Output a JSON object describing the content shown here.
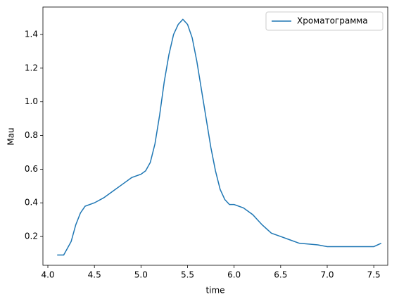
{
  "chart_data": {
    "type": "line",
    "x_label": "time",
    "y_label": "Mau",
    "x": [
      4.1,
      4.17,
      4.2,
      4.25,
      4.3,
      4.35,
      4.4,
      4.5,
      4.6,
      4.7,
      4.8,
      4.9,
      5.0,
      5.05,
      5.1,
      5.15,
      5.2,
      5.25,
      5.3,
      5.35,
      5.4,
      5.45,
      5.5,
      5.55,
      5.6,
      5.65,
      5.7,
      5.75,
      5.8,
      5.85,
      5.9,
      5.95,
      6.0,
      6.1,
      6.2,
      6.3,
      6.4,
      6.5,
      6.6,
      6.7,
      6.9,
      7.0,
      7.5,
      7.58
    ],
    "series": [
      {
        "name": "Хроматограмма",
        "color": "#1f77b4",
        "values": [
          0.09,
          0.09,
          0.12,
          0.17,
          0.27,
          0.34,
          0.38,
          0.4,
          0.43,
          0.47,
          0.51,
          0.55,
          0.57,
          0.59,
          0.64,
          0.75,
          0.92,
          1.12,
          1.28,
          1.4,
          1.46,
          1.49,
          1.46,
          1.38,
          1.24,
          1.07,
          0.9,
          0.73,
          0.59,
          0.48,
          0.42,
          0.39,
          0.39,
          0.37,
          0.33,
          0.27,
          0.22,
          0.2,
          0.18,
          0.16,
          0.15,
          0.14,
          0.14,
          0.16
        ]
      }
    ],
    "xlim": [
      3.947,
      7.65
    ],
    "ylim": [
      0.029,
      1.563
    ],
    "xticks": [
      {
        "value": 4.0,
        "label": "4.0"
      },
      4.5,
      {
        "value": 5.0,
        "label": "5.0"
      },
      5.5,
      {
        "value": 6.0,
        "label": "6.0"
      },
      6.5,
      {
        "value": 7.0,
        "label": "7.0"
      },
      7.5
    ],
    "yticks": [
      0.2,
      0.4,
      0.6,
      0.8,
      {
        "value": 1.0,
        "label": "1.0"
      },
      1.2,
      1.4
    ],
    "legend": "upper right"
  }
}
